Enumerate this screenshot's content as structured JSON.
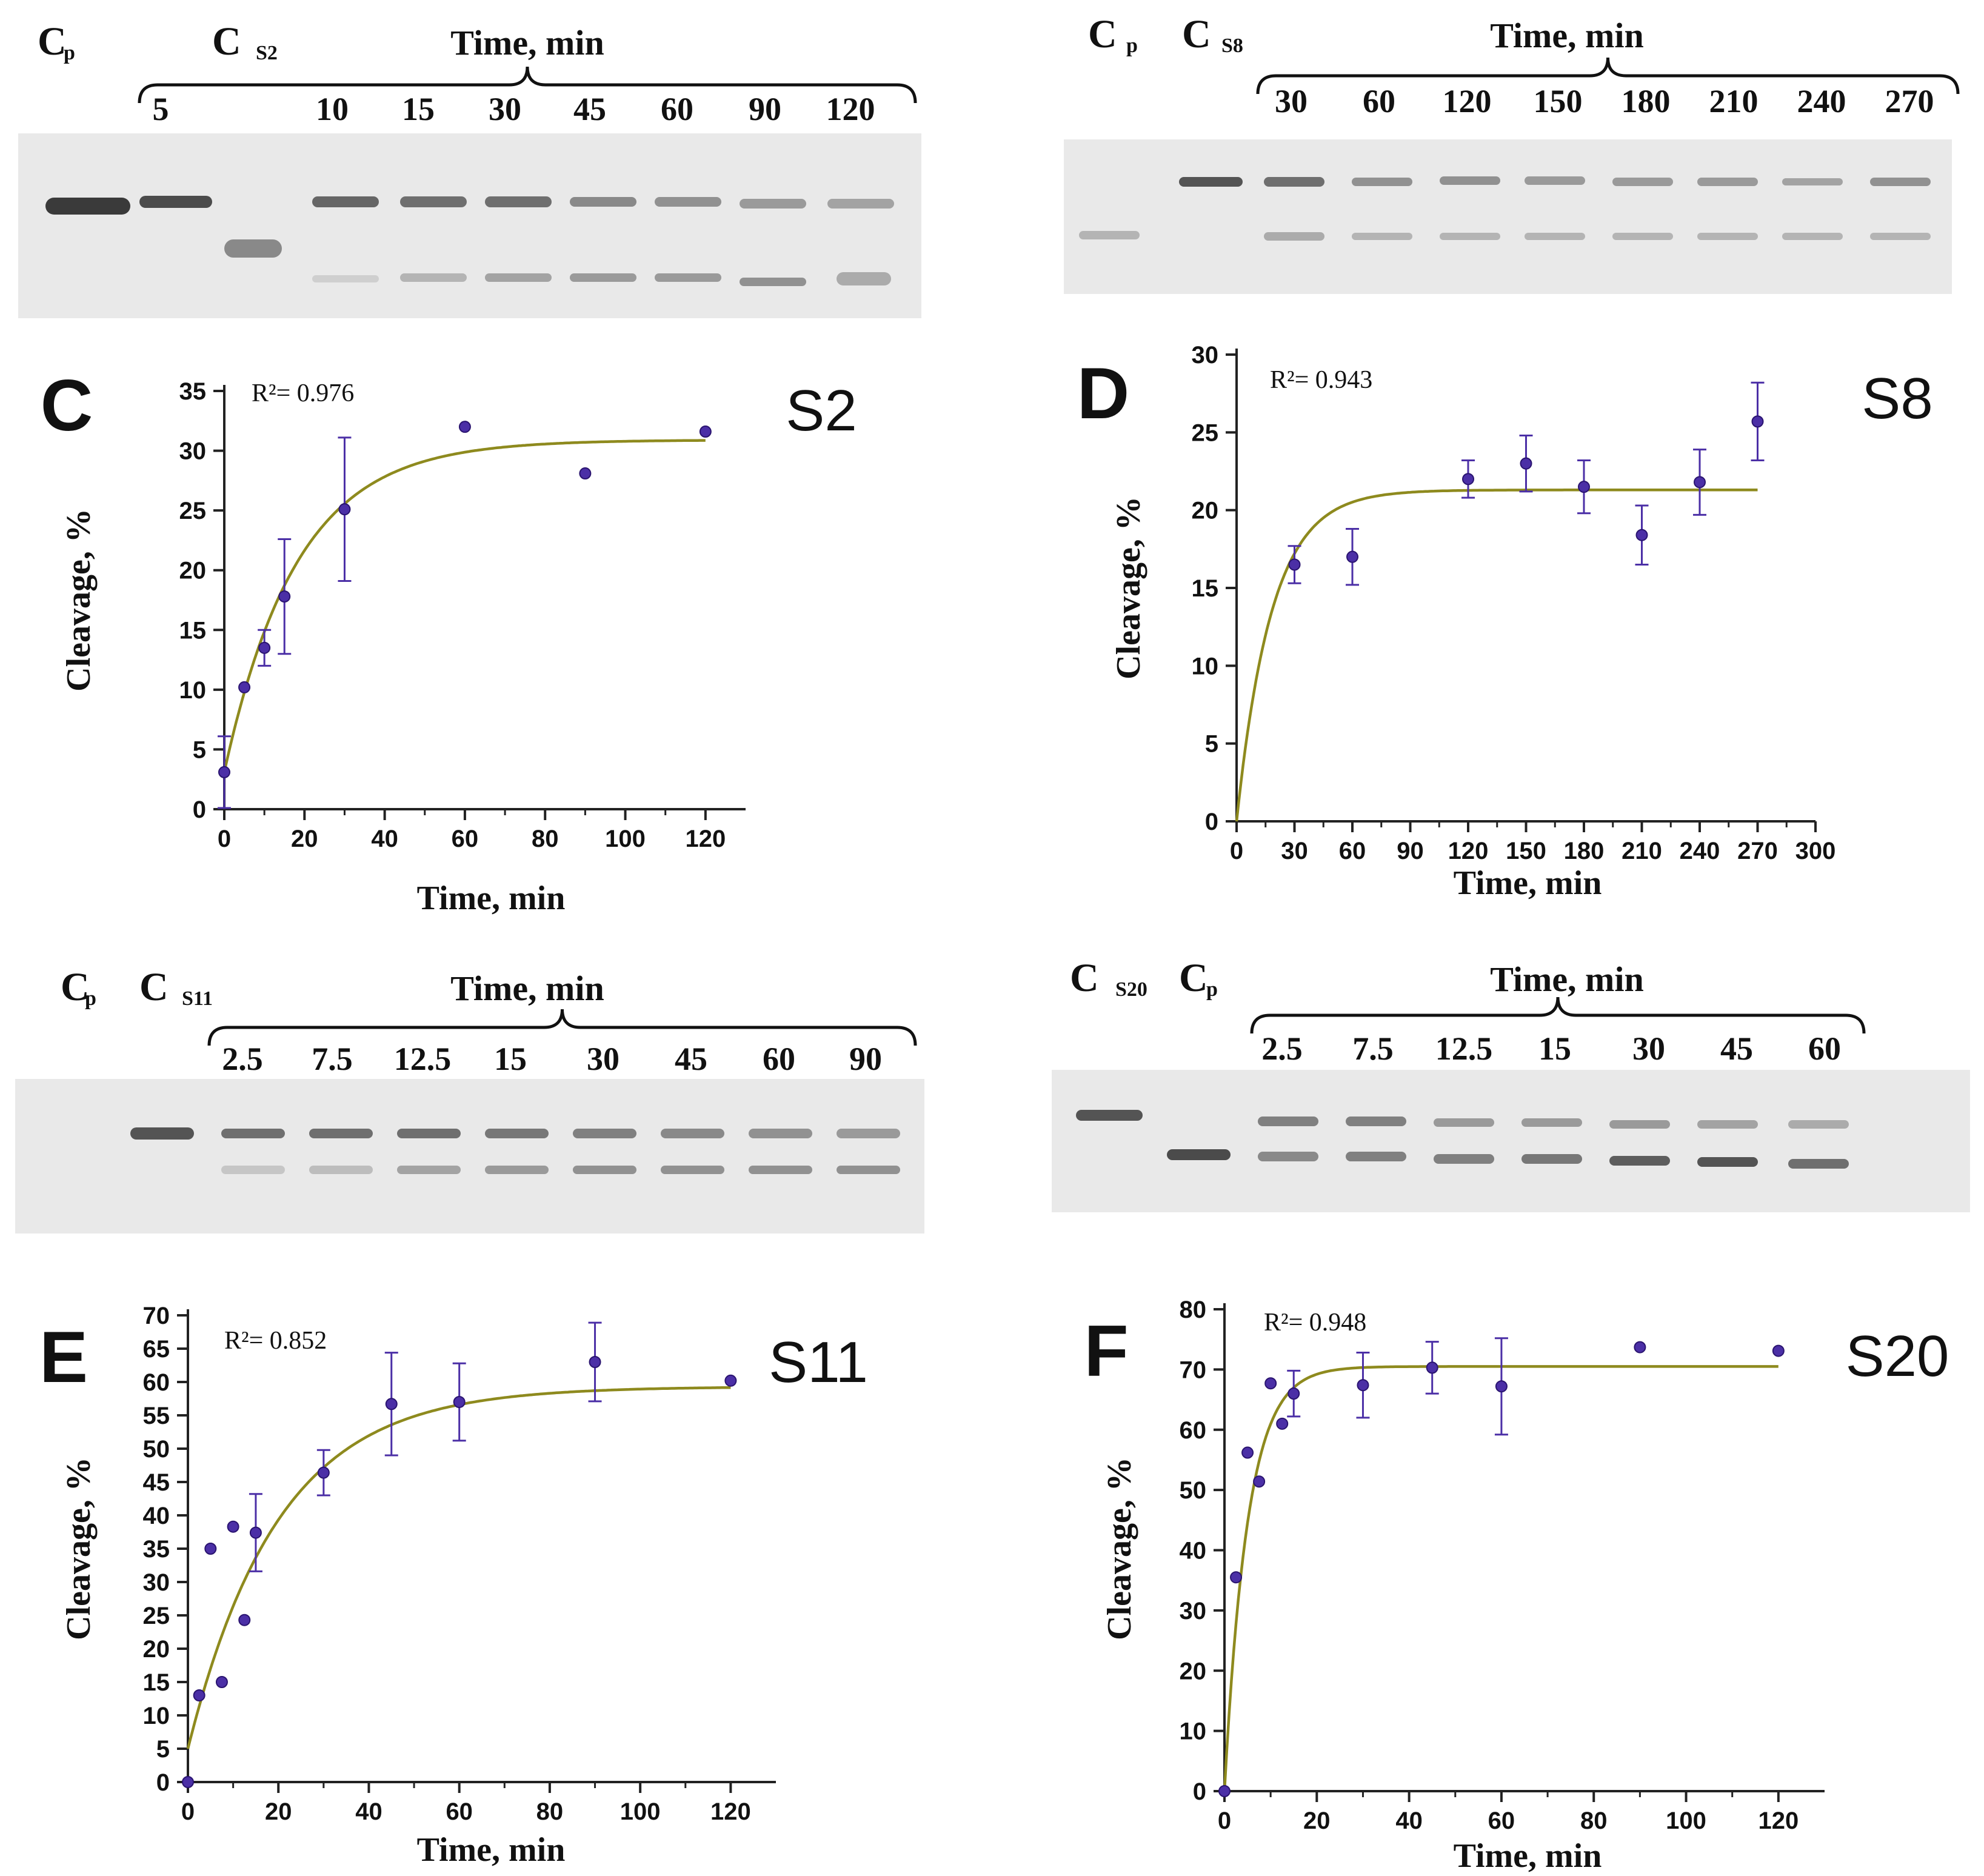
{
  "colors": {
    "fit_line": "#8e8a1e",
    "point": "#4b2fa6",
    "point_edge": "#2a1470",
    "axis": "#222222",
    "gel_background": "#e9e9e9",
    "band": "#3a3a3a"
  },
  "gels": [
    {
      "id": "S2",
      "header_labels": [
        "C",
        "p",
        "C",
        "S2"
      ],
      "time_label": "Time, min",
      "lane_labels": [
        "5",
        "10",
        "15",
        "30",
        "45",
        "60",
        "90",
        "120"
      ]
    },
    {
      "id": "S8",
      "header_labels": [
        "C",
        "p",
        "C",
        "S8"
      ],
      "time_label": "Time, min",
      "lane_labels": [
        "30",
        "60",
        "120",
        "150",
        "180",
        "210",
        "240",
        "270"
      ]
    },
    {
      "id": "S11",
      "header_labels": [
        "C",
        "p",
        "C",
        "S11"
      ],
      "time_label": "Time, min",
      "lane_labels": [
        "2.5",
        "7.5",
        "12.5",
        "15",
        "30",
        "45",
        "60",
        "90"
      ]
    },
    {
      "id": "S20",
      "header_labels": [
        "C",
        "S20",
        "C",
        "p"
      ],
      "time_label": "Time, min",
      "lane_labels": [
        "2.5",
        "7.5",
        "12.5",
        "15",
        "30",
        "45",
        "60"
      ]
    }
  ],
  "chart_data": [
    {
      "type": "scatter",
      "panel": "C",
      "name": "S2",
      "r2": "R²= 0.976",
      "xlabel": "Time, min",
      "ylabel": "Cleavage, %",
      "xlim": [
        0,
        130
      ],
      "ylim": [
        0,
        35
      ],
      "xticks": [
        0,
        20,
        40,
        60,
        80,
        100,
        120
      ],
      "yticks": [
        0,
        5,
        10,
        15,
        20,
        25,
        30,
        35
      ],
      "points": [
        {
          "x": 0,
          "y": 3.1,
          "err": 3.0
        },
        {
          "x": 5,
          "y": 10.2,
          "err": 0
        },
        {
          "x": 10,
          "y": 13.5,
          "err": 1.5
        },
        {
          "x": 15,
          "y": 17.8,
          "err": 4.8
        },
        {
          "x": 30,
          "y": 25.1,
          "err": 6.0
        },
        {
          "x": 60,
          "y": 32.0,
          "err": 0
        },
        {
          "x": 90,
          "y": 28.1,
          "err": 0
        },
        {
          "x": 120,
          "y": 31.6,
          "err": 0
        }
      ],
      "fit": {
        "y0": 3.1,
        "plateau": 30.9,
        "k": 0.055,
        "xmax": 120
      }
    },
    {
      "type": "scatter",
      "panel": "D",
      "name": "S8",
      "r2": "R²= 0.943",
      "xlabel": "Time, min",
      "ylabel": "Cleavage, %",
      "xlim": [
        0,
        300
      ],
      "ylim": [
        0,
        30
      ],
      "xticks": [
        0,
        30,
        60,
        90,
        120,
        150,
        180,
        210,
        240,
        270,
        300
      ],
      "yticks": [
        0,
        5,
        10,
        15,
        20,
        25,
        30
      ],
      "points": [
        {
          "x": 30,
          "y": 16.5,
          "err": 1.2
        },
        {
          "x": 60,
          "y": 17.0,
          "err": 1.8
        },
        {
          "x": 120,
          "y": 22.0,
          "err": 1.2
        },
        {
          "x": 150,
          "y": 23.0,
          "err": 1.8
        },
        {
          "x": 180,
          "y": 21.5,
          "err": 1.7
        },
        {
          "x": 210,
          "y": 18.4,
          "err": 1.9
        },
        {
          "x": 240,
          "y": 21.8,
          "err": 2.1
        },
        {
          "x": 270,
          "y": 25.7,
          "err": 2.5
        }
      ],
      "fit": {
        "y0": 0,
        "plateau": 21.3,
        "k": 0.055,
        "xmax": 270
      }
    },
    {
      "type": "scatter",
      "panel": "E",
      "name": "S11",
      "r2": "R²= 0.852",
      "xlabel": "Time, min",
      "ylabel": "Cleavage, %",
      "xlim": [
        0,
        130
      ],
      "ylim": [
        0,
        70
      ],
      "xticks": [
        0,
        20,
        40,
        60,
        80,
        100,
        120
      ],
      "yticks": [
        0,
        5,
        10,
        15,
        20,
        25,
        30,
        35,
        40,
        45,
        50,
        55,
        60,
        65,
        70
      ],
      "points": [
        {
          "x": 0,
          "y": 0,
          "err": 0
        },
        {
          "x": 2.5,
          "y": 13.0,
          "err": 0
        },
        {
          "x": 5,
          "y": 35.0,
          "err": 0
        },
        {
          "x": 7.5,
          "y": 15.0,
          "err": 0
        },
        {
          "x": 10,
          "y": 38.3,
          "err": 0
        },
        {
          "x": 12.5,
          "y": 24.3,
          "err": 0
        },
        {
          "x": 15,
          "y": 37.4,
          "err": 5.8
        },
        {
          "x": 30,
          "y": 46.4,
          "err": 3.4
        },
        {
          "x": 45,
          "y": 56.7,
          "err": 7.7
        },
        {
          "x": 60,
          "y": 57.0,
          "err": 5.8
        },
        {
          "x": 90,
          "y": 63.0,
          "err": 5.9
        },
        {
          "x": 120,
          "y": 60.2,
          "err": 0
        }
      ],
      "fit": {
        "y0": 5.0,
        "plateau": 59.3,
        "k": 0.05,
        "xmax": 120
      }
    },
    {
      "type": "scatter",
      "panel": "F",
      "name": "S20",
      "r2": "R²= 0.948",
      "xlabel": "Time, min",
      "ylabel": "Cleavage, %",
      "xlim": [
        0,
        130
      ],
      "ylim": [
        0,
        80
      ],
      "xticks": [
        0,
        20,
        40,
        60,
        80,
        100,
        120
      ],
      "yticks": [
        0,
        10,
        20,
        30,
        40,
        50,
        60,
        70,
        80
      ],
      "points": [
        {
          "x": 0,
          "y": 0,
          "err": 0
        },
        {
          "x": 2.5,
          "y": 35.5,
          "err": 0
        },
        {
          "x": 5,
          "y": 56.2,
          "err": 0
        },
        {
          "x": 7.5,
          "y": 51.4,
          "err": 0
        },
        {
          "x": 10,
          "y": 67.7,
          "err": 0
        },
        {
          "x": 12.5,
          "y": 61.0,
          "err": 0
        },
        {
          "x": 15,
          "y": 66.0,
          "err": 3.8
        },
        {
          "x": 30,
          "y": 67.4,
          "err": 5.4
        },
        {
          "x": 45,
          "y": 70.3,
          "err": 4.3
        },
        {
          "x": 60,
          "y": 67.2,
          "err": 8.0
        },
        {
          "x": 90,
          "y": 73.7,
          "err": 0
        },
        {
          "x": 120,
          "y": 73.1,
          "err": 0
        }
      ],
      "fit": {
        "y0": 0,
        "plateau": 70.5,
        "k": 0.2,
        "xmax": 120
      }
    }
  ]
}
